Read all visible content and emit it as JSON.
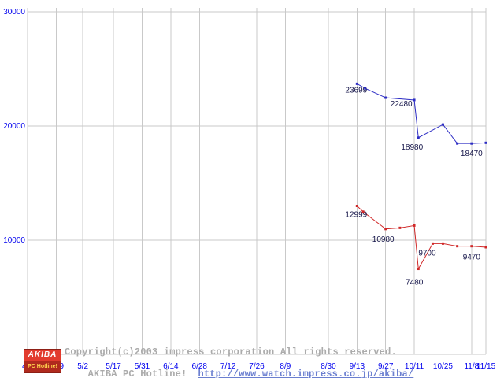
{
  "chart_data": {
    "type": "line",
    "title": "",
    "xlabel": "",
    "ylabel": "",
    "ylim": [
      0,
      30000
    ],
    "grid": true,
    "legend": null,
    "y_axis": {
      "ticks": [
        10000,
        20000,
        30000
      ]
    },
    "x_axis": {
      "ticks": [
        {
          "label": "4/5",
          "day": 0
        },
        {
          "label": "4/19",
          "day": 14
        },
        {
          "label": "5/2",
          "day": 27
        },
        {
          "label": "5/17",
          "day": 42
        },
        {
          "label": "5/31",
          "day": 56
        },
        {
          "label": "6/14",
          "day": 70
        },
        {
          "label": "6/28",
          "day": 84
        },
        {
          "label": "7/12",
          "day": 98
        },
        {
          "label": "7/26",
          "day": 112
        },
        {
          "label": "8/9",
          "day": 126
        },
        {
          "label": "8/30",
          "day": 147
        },
        {
          "label": "9/13",
          "day": 161
        },
        {
          "label": "9/27",
          "day": 175
        },
        {
          "label": "10/11",
          "day": 189
        },
        {
          "label": "10/25",
          "day": 203
        },
        {
          "label": "11/8",
          "day": 217
        },
        {
          "label": "11/15",
          "day": 224
        }
      ]
    },
    "series": [
      {
        "name": "price-series-blue",
        "color": "#2c2cc4",
        "points": [
          {
            "date": "9/13",
            "day": 161,
            "value": 23699,
            "label": "23699",
            "dx": -1,
            "dy": 11
          },
          {
            "date": "9/17",
            "day": 165,
            "value": 23299
          },
          {
            "date": "9/27",
            "day": 175,
            "value": 22480,
            "label": "22480",
            "dx": 20,
            "dy": 11
          },
          {
            "date": "10/11",
            "day": 189,
            "value": 22280
          },
          {
            "date": "10/13",
            "day": 191,
            "value": 18980,
            "label": "18980",
            "dx": -8,
            "dy": 15
          },
          {
            "date": "10/25",
            "day": 203,
            "value": 20130
          },
          {
            "date": "11/1",
            "day": 210,
            "value": 18470
          },
          {
            "date": "11/8",
            "day": 217,
            "value": 18470,
            "label": "18470",
            "dx": 0,
            "dy": 16
          },
          {
            "date": "11/15",
            "day": 224,
            "value": 18530
          }
        ]
      },
      {
        "name": "price-series-red",
        "color": "#d02828",
        "points": [
          {
            "date": "9/13",
            "day": 161,
            "value": 12999,
            "label": "12999",
            "dx": -1,
            "dy": 14
          },
          {
            "date": "9/16",
            "day": 164,
            "value": 12499
          },
          {
            "date": "9/27",
            "day": 175,
            "value": 10980,
            "label": "10980",
            "dx": -3,
            "dy": 16
          },
          {
            "date": "10/4",
            "day": 182,
            "value": 11080
          },
          {
            "date": "10/11",
            "day": 189,
            "value": 11280
          },
          {
            "date": "10/13",
            "day": 191,
            "value": 7480,
            "label": "7480",
            "dx": -5,
            "dy": 20
          },
          {
            "date": "10/20",
            "day": 198,
            "value": 9700,
            "label": "9700",
            "dx": -7,
            "dy": 15
          },
          {
            "date": "10/25",
            "day": 203,
            "value": 9700
          },
          {
            "date": "11/1",
            "day": 210,
            "value": 9470
          },
          {
            "date": "11/8",
            "day": 217,
            "value": 9470,
            "label": "9470",
            "dx": 0,
            "dy": 17
          },
          {
            "date": "11/15",
            "day": 224,
            "value": 9380
          }
        ]
      }
    ],
    "colors": {
      "grid": "#c9c9c9",
      "axis_text": "#0000ee",
      "point_label": "#16164a"
    }
  },
  "footer": {
    "logo": {
      "line1": "AKIBA",
      "line2": "PC Hotline!"
    },
    "copyright": "Copyright(c)2003 impress corporation All rights reserved.",
    "site_name": "AKIBA PC Hotline!",
    "url": "http://www.watch.impress.co.jp/akiba/"
  }
}
